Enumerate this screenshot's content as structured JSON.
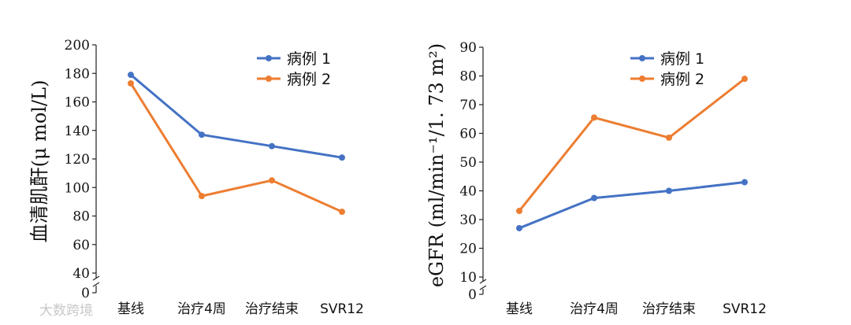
{
  "watermark": "大数跨境",
  "chart_data": [
    {
      "type": "line",
      "categories": [
        "基线",
        "治疗4周",
        "治疗结束",
        "SVR12"
      ],
      "ylabel": "血清肌酐(μ mol/L)",
      "ylim": [
        40,
        200
      ],
      "yticks": [
        200,
        180,
        160,
        140,
        120,
        100,
        80,
        60,
        40,
        0
      ],
      "axis_break": true,
      "grid": false,
      "legend_position": "top-right",
      "series": [
        {
          "name": "病例 1",
          "color": "#4472c4",
          "values": [
            179,
            137,
            129,
            121
          ]
        },
        {
          "name": "病例 2",
          "color": "#ed7d31",
          "values": [
            173,
            94,
            105,
            83
          ]
        }
      ]
    },
    {
      "type": "line",
      "categories": [
        "基线",
        "治疗4周",
        "治疗结束",
        "SVR12"
      ],
      "ylabel": "eGFR (ml/min⁻¹/1. 73 m²)",
      "ylim": [
        10,
        90
      ],
      "yticks": [
        90,
        80,
        70,
        60,
        50,
        40,
        30,
        20,
        10,
        0
      ],
      "axis_break": true,
      "grid": false,
      "legend_position": "top-right",
      "series": [
        {
          "name": "病例 1",
          "color": "#4472c4",
          "values": [
            27,
            37.5,
            40,
            43
          ]
        },
        {
          "name": "病例 2",
          "color": "#ed7d31",
          "values": [
            33,
            65.5,
            58.5,
            79
          ]
        }
      ]
    }
  ]
}
